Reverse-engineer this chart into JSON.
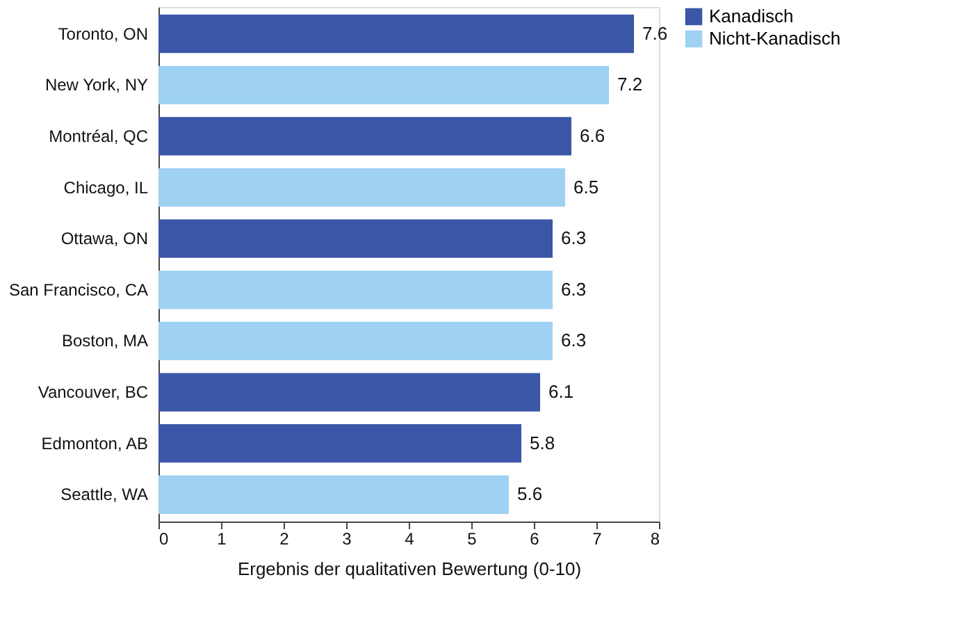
{
  "chart_data": {
    "type": "bar",
    "orientation": "horizontal",
    "xlabel": "Ergebnis der qualitativen Bewertung (0-10)",
    "categories": [
      "Toronto, ON",
      "New York, NY",
      "Montréal, QC",
      "Chicago, IL",
      "Ottawa, ON",
      "San Francisco, CA",
      "Boston, MA",
      "Vancouver, BC",
      "Edmonton, AB",
      "Seattle, WA"
    ],
    "series": [
      {
        "name": "Kanadisch",
        "color": "#3b56a6",
        "values": [
          7.6,
          null,
          6.6,
          null,
          6.3,
          null,
          null,
          6.1,
          5.8,
          null
        ]
      },
      {
        "name": "Nicht-Kanadisch",
        "color": "#9fd1f2",
        "values": [
          null,
          7.2,
          null,
          6.5,
          null,
          6.3,
          6.3,
          null,
          null,
          5.6
        ]
      }
    ],
    "xlim": [
      0,
      8
    ],
    "xticks": [
      0,
      1,
      2,
      3,
      4,
      5,
      6,
      7,
      8
    ],
    "grid": false,
    "legend": "right",
    "data_labels": true
  }
}
